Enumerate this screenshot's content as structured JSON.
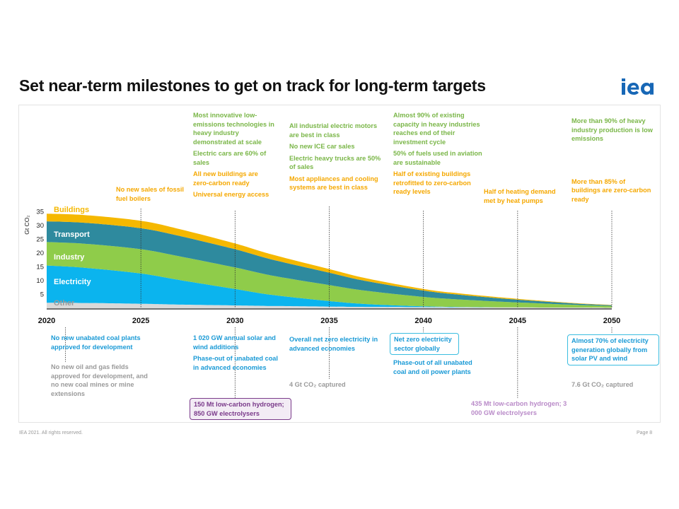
{
  "header": {
    "title": "Set near-term milestones to get on track for long-term targets",
    "logo_text": "iea"
  },
  "footer": {
    "copyright": "IEA 2021. All rights reserved.",
    "page": "Page 8"
  },
  "chart_data": {
    "type": "area",
    "stacked": true,
    "ylabel": "Gt CO₂",
    "yticks": [
      5,
      10,
      15,
      20,
      25,
      30,
      35
    ],
    "ylim": [
      0,
      37
    ],
    "xticks": [
      2020,
      2025,
      2030,
      2035,
      2040,
      2045,
      2050
    ],
    "xlim": [
      2020,
      2050
    ],
    "x": [
      2020,
      2022,
      2025,
      2027,
      2030,
      2032,
      2035,
      2037,
      2040,
      2042,
      2045,
      2048,
      2050
    ],
    "series": [
      {
        "name": "Other",
        "color": "#d9d9d9",
        "values": [
          2.0,
          1.9,
          1.6,
          1.3,
          1.0,
          0.8,
          0.6,
          0.5,
          0.4,
          0.35,
          0.3,
          0.25,
          0.2
        ]
      },
      {
        "name": "Electricity",
        "color": "#0bb4ee",
        "values": [
          13.5,
          12.8,
          11.0,
          9.0,
          6.0,
          4.0,
          2.0,
          1.0,
          0.3,
          0.1,
          0.0,
          0.0,
          0.0
        ]
      },
      {
        "name": "Industry",
        "color": "#8fcc4a",
        "values": [
          8.5,
          8.7,
          8.8,
          8.6,
          7.8,
          7.0,
          5.8,
          4.8,
          3.4,
          2.7,
          1.8,
          1.0,
          0.6
        ]
      },
      {
        "name": "Transport",
        "color": "#2e8a9e",
        "values": [
          7.5,
          7.6,
          7.6,
          7.4,
          6.6,
          5.8,
          4.5,
          3.5,
          2.3,
          1.7,
          1.0,
          0.5,
          0.3
        ]
      },
      {
        "name": "Buildings",
        "color": "#f5b800",
        "values": [
          2.8,
          2.8,
          2.7,
          2.5,
          2.1,
          1.8,
          1.3,
          1.0,
          0.6,
          0.45,
          0.3,
          0.15,
          0.1
        ]
      }
    ],
    "series_labels": [
      "Buildings",
      "Transport",
      "Industry",
      "Electricity",
      "Other"
    ],
    "milestone_years": [
      2021,
      2025,
      2030,
      2035,
      2040,
      2045,
      2050
    ]
  },
  "annotations": {
    "above": {
      "y2021_2025": [
        "No new sales of fossil fuel boilers"
      ],
      "y2030": [
        "Most innovative low-emissions technologies in heavy industry demonstrated at scale",
        "Electric cars are 60% of sales",
        "All new buildings are zero-carbon ready",
        "Universal energy access"
      ],
      "y2035": [
        "All industrial electric motors are best in class",
        "No new ICE car sales",
        "Electric heavy trucks are 50% of sales",
        "Most appliances and cooling systems are best in class"
      ],
      "y2040": [
        "Almost 90% of existing capacity in heavy industries reaches end of their investment cycle",
        "50% of fuels used in aviation are sustainable",
        "Half of existing buildings retrofitted to zero-carbon ready levels"
      ],
      "y2045": [
        "Half of heating demand met by heat pumps"
      ],
      "y2050": [
        "More than 90% of heavy industry production is low emissions",
        "More than 85% of buildings are zero-carbon ready"
      ]
    },
    "below": {
      "y2021": [
        "No new unabated coal plants approved for development",
        "No new oil and gas fields approved for development, and no new coal mines or mine extensions"
      ],
      "y2030": [
        "1 020 GW annual solar and wind additions",
        "Phase-out of unabated coal in advanced economies",
        "150 Mt low-carbon hydrogen; 850 GW electrolysers"
      ],
      "y2035": [
        "Overall net zero electricity in advanced economies",
        "4 Gt CO₂ captured"
      ],
      "y2040": [
        "Net zero electricity sector globally",
        "Phase-out of all unabated coal and oil power plants"
      ],
      "y2045": [
        "435 Mt low-carbon hydrogen; 3 000 GW electrolysers"
      ],
      "y2050": [
        "Almost 70% of electricity generation globally from solar PV and wind",
        "7.6 Gt CO₂ captured"
      ]
    }
  }
}
